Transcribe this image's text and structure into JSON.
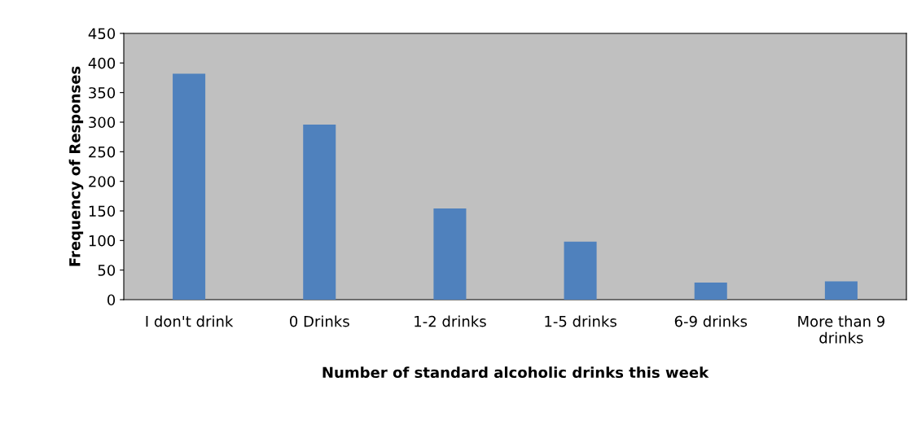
{
  "chart_data": {
    "type": "bar",
    "xlabel": "Number of standard alcoholic drinks this week",
    "ylabel": "Frequency of Responses",
    "categories": [
      "I don't drink",
      "0 Drinks",
      "1-2 drinks",
      "1-5 drinks",
      "6-9 drinks",
      "More than 9\ndrinks"
    ],
    "values": [
      382,
      296,
      154,
      98,
      29,
      31
    ],
    "color": "#4f81bd",
    "ylim": [
      0,
      450
    ],
    "yticks": [
      0,
      50,
      100,
      150,
      200,
      250,
      300,
      350,
      400,
      450
    ],
    "grid": false,
    "legend": false
  }
}
